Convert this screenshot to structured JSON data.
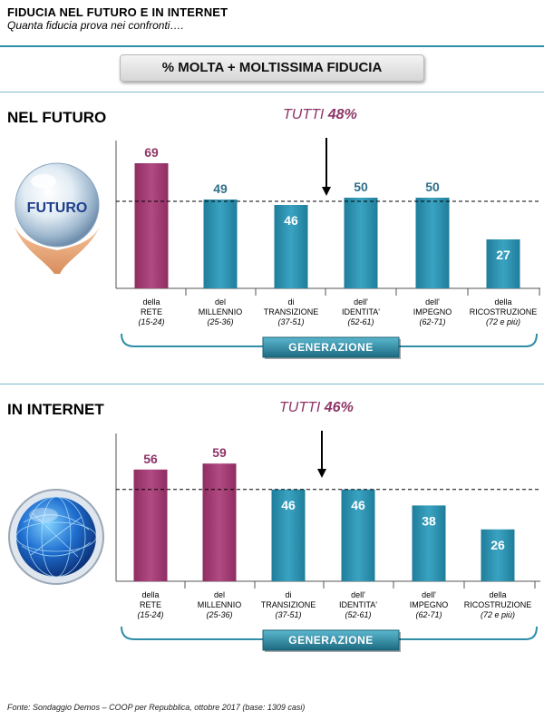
{
  "header": {
    "title": "FIDUCIA NEL FUTURO E IN INTERNET",
    "subtitle": "Quanta fiducia prova nei confronti…."
  },
  "banner": "% MOLTA + MOLTISSIMA FIDUCIA",
  "footer": "Fonte: Sondaggio Demos – COOP per Repubblica, ottobre 2017 (base: 1309 casi)",
  "icons": {
    "future": "crystal-ball-hands-icon",
    "future_label": "FUTURO",
    "internet": "globe-network-icon"
  },
  "colors": {
    "highlight_bar": "#b24a83",
    "bar": "#3aa3c2",
    "value_highlight": "#8e3567",
    "value_default": "#2f6f8a"
  },
  "chart_data": [
    {
      "type": "bar",
      "title": "NEL FUTURO",
      "reference": {
        "label": "TUTTI",
        "value": 48,
        "text": "48%"
      },
      "categories": [
        {
          "lines": [
            "della",
            "RETE"
          ],
          "age": "(15-24)"
        },
        {
          "lines": [
            "del",
            "MILLENNIO"
          ],
          "age": "(25-36)"
        },
        {
          "lines": [
            "di",
            "TRANSIZIONE"
          ],
          "age": "(37-51)"
        },
        {
          "lines": [
            "dell'",
            "IDENTITA'"
          ],
          "age": "(52-61)"
        },
        {
          "lines": [
            "dell'",
            "IMPEGNO"
          ],
          "age": "(62-71)"
        },
        {
          "lines": [
            "della",
            "RICOSTRUZIONE"
          ],
          "age": "(72 e più)"
        }
      ],
      "values": [
        69,
        49,
        46,
        50,
        50,
        27
      ],
      "highlight": [
        true,
        false,
        false,
        false,
        false,
        false
      ],
      "group_label": "GENERAZIONE"
    },
    {
      "type": "bar",
      "title": "IN INTERNET",
      "reference": {
        "label": "TUTTI",
        "value": 46,
        "text": "46%"
      },
      "categories": [
        {
          "lines": [
            "della",
            "RETE"
          ],
          "age": "(15-24)"
        },
        {
          "lines": [
            "del",
            "MILLENNIO"
          ],
          "age": "(25-36)"
        },
        {
          "lines": [
            "di",
            "TRANSIZIONE"
          ],
          "age": "(37-51)"
        },
        {
          "lines": [
            "dell'",
            "IDENTITA'"
          ],
          "age": "(52-61)"
        },
        {
          "lines": [
            "dell'",
            "IMPEGNO"
          ],
          "age": "(62-71)"
        },
        {
          "lines": [
            "della",
            "RICOSTRUZIONE"
          ],
          "age": "(72 e più)"
        }
      ],
      "values": [
        56,
        59,
        46,
        46,
        38,
        26
      ],
      "highlight": [
        true,
        true,
        false,
        false,
        false,
        false
      ],
      "group_label": "GENERAZIONE"
    }
  ]
}
